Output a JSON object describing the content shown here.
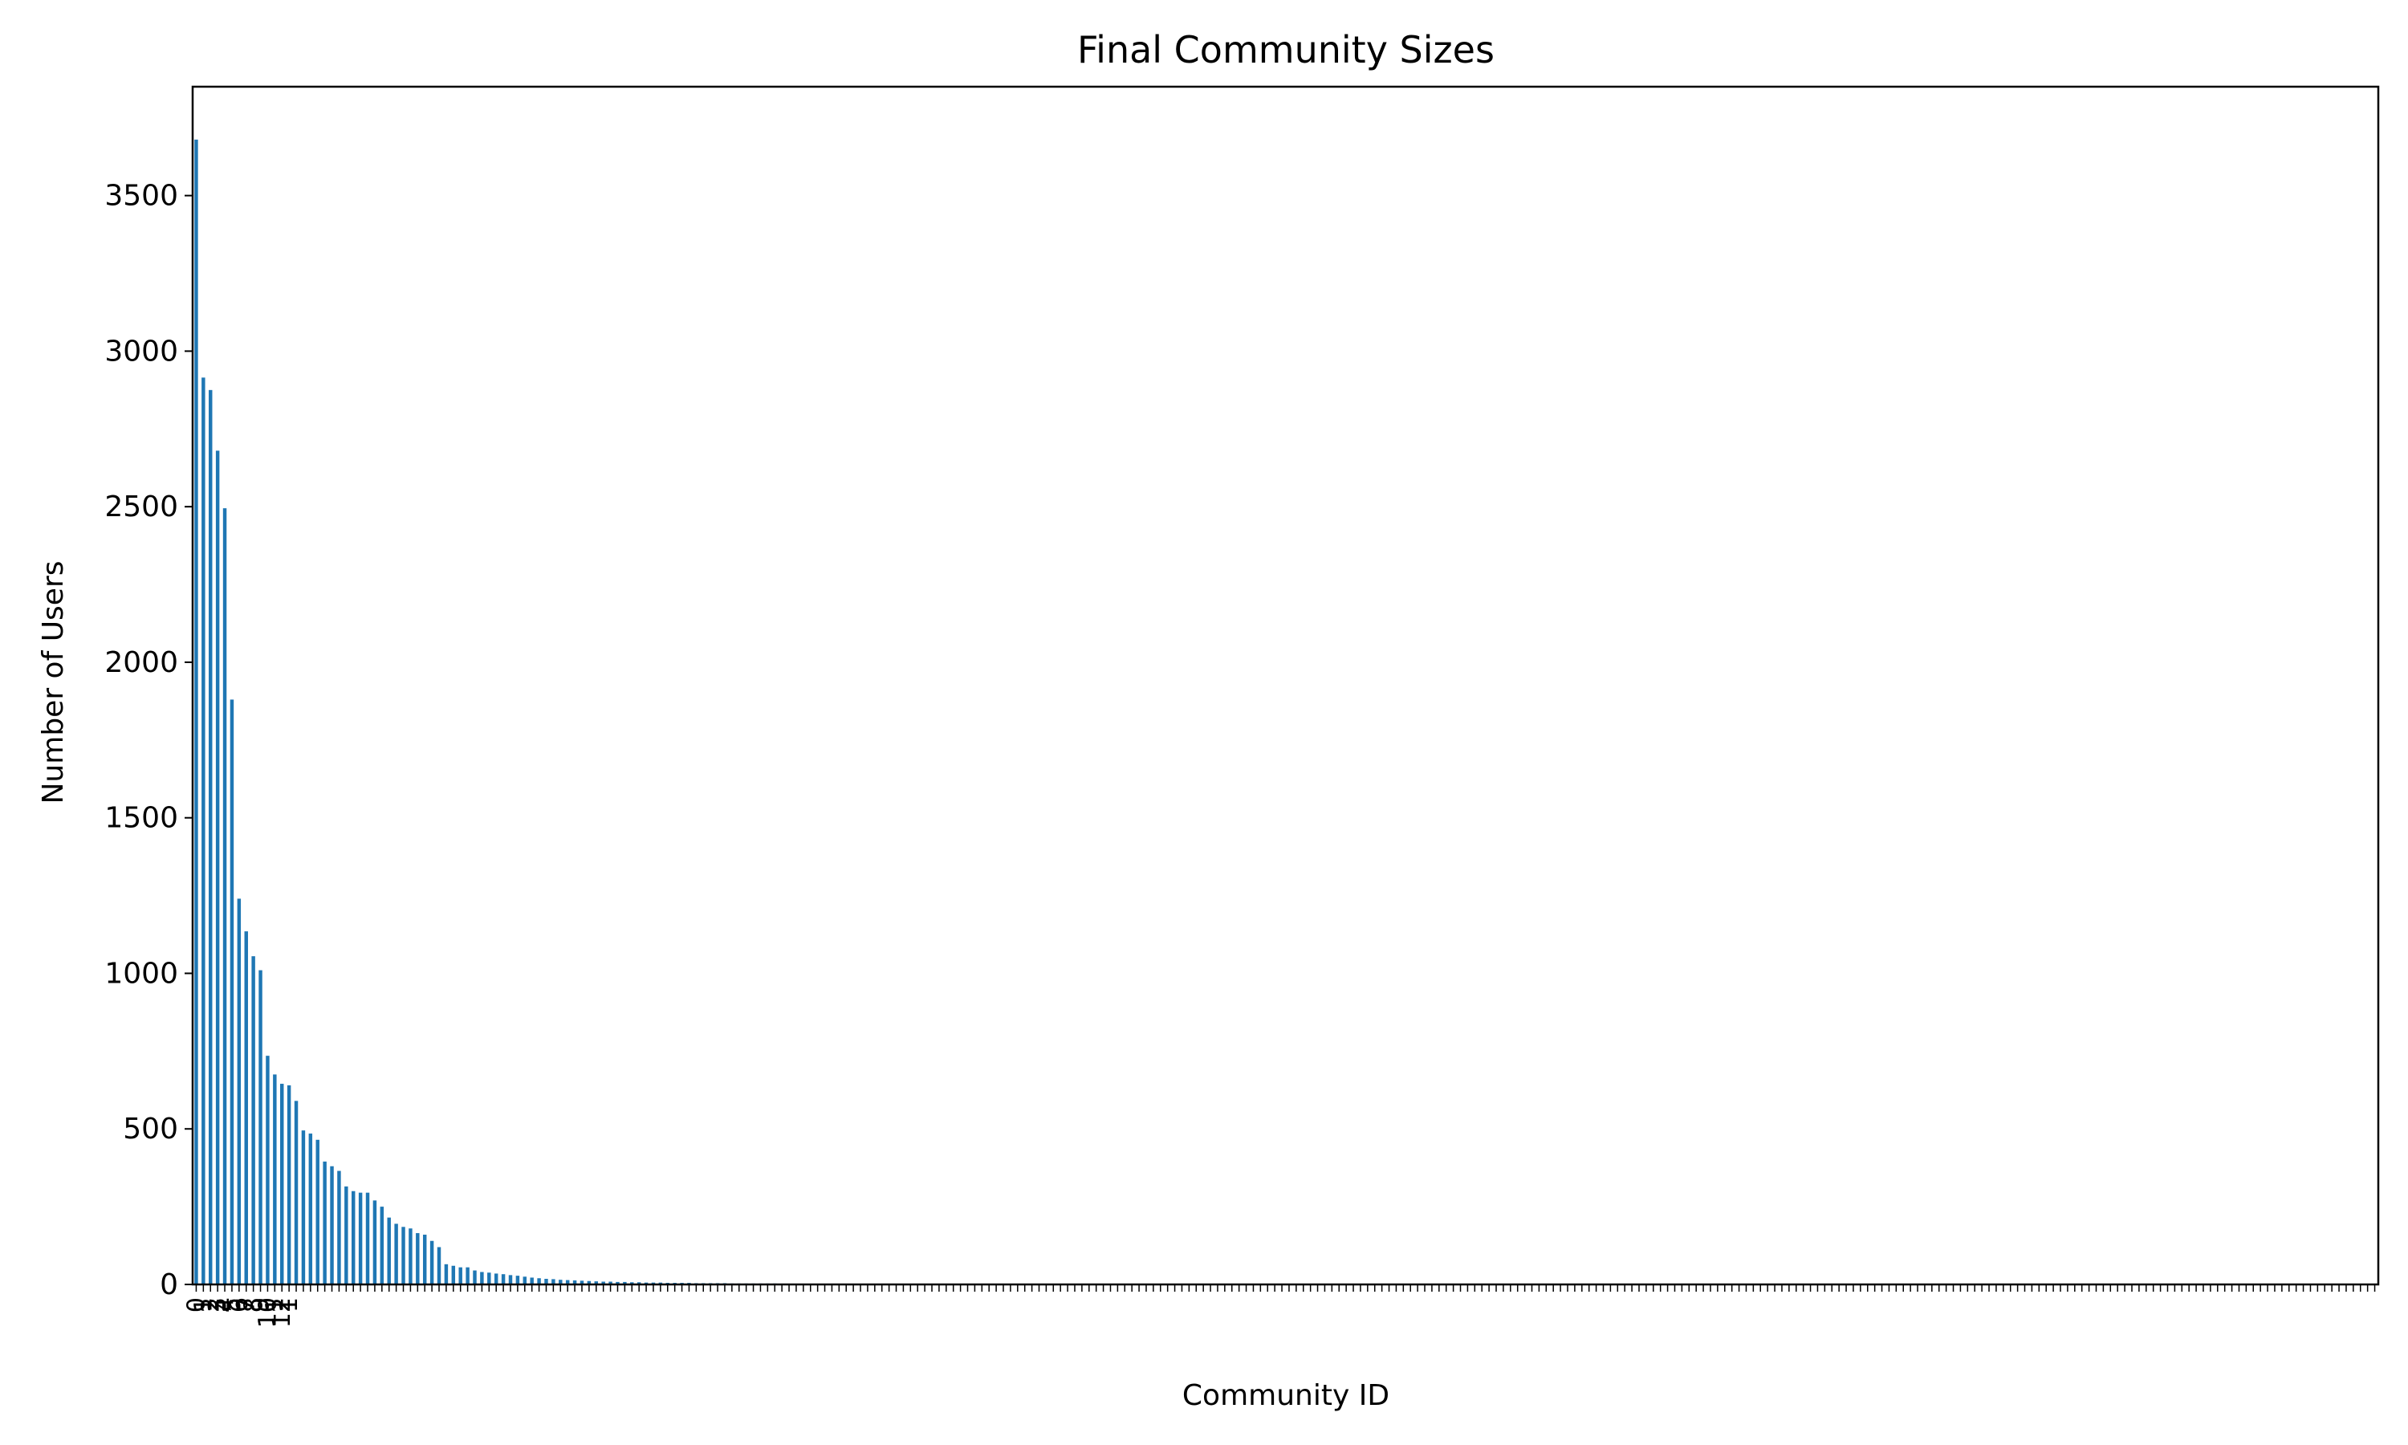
{
  "chart_data": {
    "type": "bar",
    "title": "Final Community Sizes",
    "xlabel": "Community ID",
    "ylabel": "Number of Users",
    "ylim": [
      0,
      3850
    ],
    "yticks": [
      0,
      500,
      1000,
      1500,
      2000,
      2500,
      3000,
      3500
    ],
    "grid": false,
    "legend": "none",
    "bar_color": "#1f77b4",
    "category_count": 306,
    "visible_category_labels": [
      "0",
      "1",
      "2",
      "3",
      "4",
      "5",
      "6",
      "7",
      "8",
      "9",
      "10",
      "1",
      "12",
      "1"
    ],
    "values": [
      3680,
      2915,
      2875,
      2680,
      2495,
      1880,
      1240,
      1135,
      1055,
      1010,
      735,
      675,
      645,
      640,
      590,
      495,
      485,
      465,
      395,
      380,
      365,
      315,
      300,
      295,
      295,
      270,
      250,
      215,
      195,
      185,
      180,
      165,
      160,
      140,
      120,
      65,
      60,
      55,
      55,
      45,
      40,
      38,
      35,
      33,
      30,
      28,
      25,
      22,
      20,
      18,
      17,
      15,
      14,
      13,
      12,
      11,
      10,
      9,
      9,
      8,
      8,
      7,
      7,
      6,
      6,
      6,
      5,
      5,
      5,
      5,
      4,
      4,
      4,
      4,
      4,
      3,
      3,
      3,
      3,
      3,
      3,
      3,
      2,
      2,
      2,
      2,
      2,
      2,
      2,
      2,
      2,
      2,
      2,
      2,
      2,
      2,
      2,
      2,
      2,
      2,
      2,
      2,
      2,
      2,
      2,
      2,
      2,
      2,
      2,
      2,
      1,
      1,
      1,
      1,
      1,
      1,
      1,
      1,
      1,
      1,
      1,
      1,
      1,
      1,
      1,
      1,
      1,
      1,
      1,
      1,
      1,
      1,
      1,
      1,
      1,
      1,
      1,
      1,
      1,
      1,
      1,
      1,
      1,
      1,
      1,
      1,
      1,
      1,
      1,
      1,
      1,
      1,
      1,
      1,
      1,
      1,
      1,
      1,
      1,
      1,
      1,
      1,
      1,
      1,
      1,
      1,
      1,
      1,
      1,
      1,
      1,
      1,
      1,
      1,
      1,
      1,
      1,
      1,
      1,
      1,
      1,
      1,
      1,
      1,
      1,
      1,
      1,
      1,
      1,
      1,
      1,
      1,
      1,
      1,
      1,
      1,
      1,
      1,
      1,
      1,
      1,
      1,
      1,
      1,
      1,
      1,
      1,
      1,
      1,
      1,
      1,
      1,
      1,
      1,
      1,
      1,
      1,
      1,
      1,
      1,
      1,
      1,
      1,
      1,
      1,
      1,
      1,
      1,
      1,
      1,
      1,
      1,
      1,
      1,
      1,
      1,
      1,
      1,
      1,
      1,
      1,
      1,
      1,
      1,
      1,
      1,
      1,
      1,
      1,
      1,
      1,
      1,
      1,
      1,
      1,
      1,
      1,
      1,
      1,
      1,
      1,
      1,
      1,
      1,
      1,
      1,
      1,
      1,
      1,
      1,
      1,
      1,
      1,
      1,
      1,
      1,
      1,
      1,
      1,
      1,
      1,
      1,
      1,
      1,
      1,
      1,
      1,
      1,
      1,
      1,
      1,
      1,
      1,
      1,
      1,
      1,
      1,
      1,
      1,
      1,
      1,
      1,
      1,
      1,
      1,
      1,
      1,
      1,
      1,
      1,
      1,
      1,
      1,
      1
    ]
  }
}
